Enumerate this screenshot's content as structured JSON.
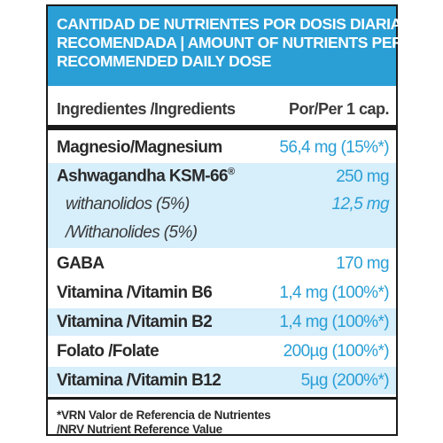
{
  "header": {
    "line1": "CANTIDAD DE NUTRIENTES POR DOSIS DIARIA",
    "line2": "RECOMENDADA | AMOUNT OF NUTRIENTS PER",
    "line3": "RECOMMENDED DAILY DOSE"
  },
  "columns": {
    "ingredients": "Ingredientes /Ingredients",
    "per": "Por/Per 1 cap."
  },
  "rows": [
    {
      "name": "Magnesio/Magnesium",
      "amount": "56,4 mg (15%*)"
    },
    {
      "name": "Ashwagandha KSM-66",
      "sup": "®",
      "amount": "250 mg"
    },
    {
      "name": "withanolidos (5%)",
      "amount": "12,5 mg"
    },
    {
      "name": "/Withanolides (5%)",
      "amount": ""
    },
    {
      "name": "GABA",
      "amount": "170 mg"
    },
    {
      "name": "Vitamina /Vitamin B6",
      "amount": "1,4 mg (100%*)"
    },
    {
      "name": "Vitamina /Vitamin B2",
      "amount": "1,4 mg (100%*)"
    },
    {
      "name": "Folato /Folate",
      "amount": "200µg (100%*)"
    },
    {
      "name": "Vitamina /Vitamin B12",
      "amount": "5µg (200%*)"
    }
  ],
  "footnote": {
    "line1": "*VRN Valor de Referencia de Nutrientes",
    "line2": "/NRV Nutrient Reference Value"
  },
  "colors": {
    "accent": "#2a9fd6",
    "shade": "#d7eefb",
    "text": "#2a2a2a"
  }
}
